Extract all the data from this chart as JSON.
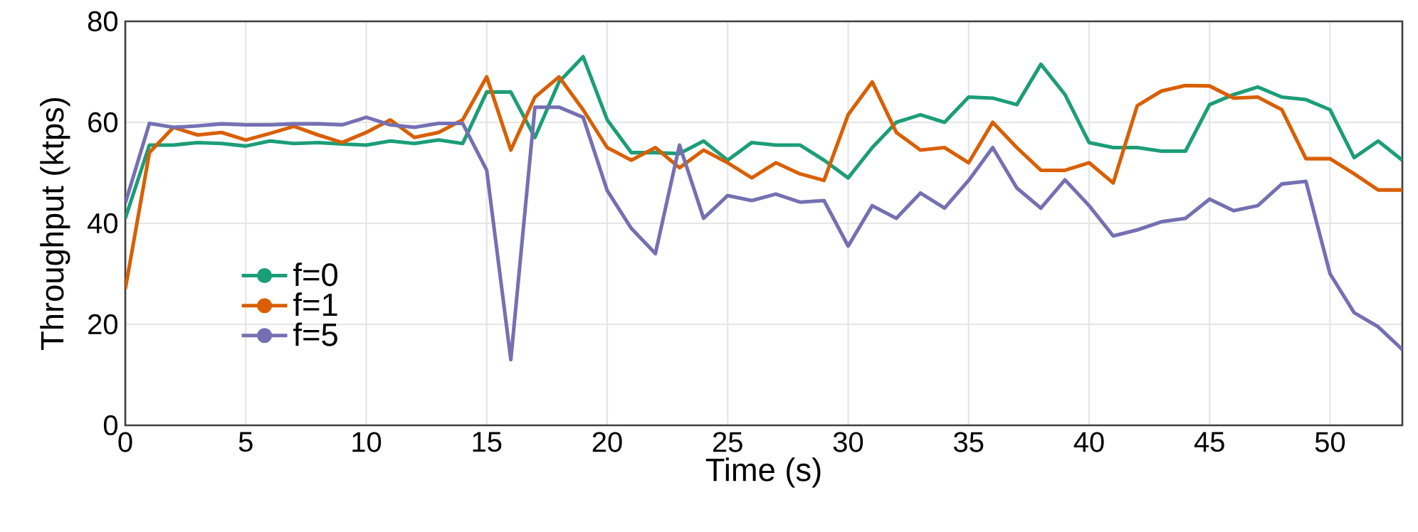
{
  "chart_data": {
    "type": "line",
    "xlabel": "Time (s)",
    "ylabel": "Throughput (ktps)",
    "x": [
      0,
      1,
      2,
      3,
      4,
      5,
      6,
      7,
      8,
      9,
      10,
      11,
      12,
      13,
      14,
      15,
      16,
      17,
      18,
      19,
      20,
      21,
      22,
      23,
      24,
      25,
      26,
      27,
      28,
      29,
      30,
      31,
      32,
      33,
      34,
      35,
      36,
      37,
      38,
      39,
      40,
      41,
      42,
      43,
      44,
      45,
      46,
      47,
      48,
      49,
      50,
      51,
      52,
      53
    ],
    "xlim": [
      0,
      53
    ],
    "xticks": [
      0,
      5,
      10,
      15,
      20,
      25,
      30,
      35,
      40,
      45,
      50
    ],
    "ylim": [
      0,
      80
    ],
    "yticks": [
      0,
      20,
      40,
      60,
      80
    ],
    "grid": true,
    "legend": "bottom left",
    "line_style": "solid",
    "series": [
      {
        "name": "f=0",
        "color": "#1b9e77",
        "values": [
          41,
          55.5,
          55.5,
          56,
          55.8,
          55.3,
          56.3,
          55.8,
          56,
          55.7,
          55.5,
          56.3,
          55.8,
          56.5,
          55.8,
          66,
          66,
          57,
          68,
          73,
          60.5,
          54,
          54,
          53.8,
          56.3,
          52.5,
          56,
          55.5,
          55.5,
          52.5,
          49,
          55,
          60,
          61.5,
          60,
          65,
          64.8,
          63.5,
          71.5,
          65.5,
          56,
          55,
          55,
          54.3,
          54.3,
          63.5,
          65.5,
          67,
          65,
          64.5,
          62.5,
          53,
          56.3,
          52.5
        ]
      },
      {
        "name": "f=1",
        "color": "#d95f02",
        "values": [
          27,
          54,
          59,
          57.5,
          58,
          56.5,
          57.8,
          59.2,
          57.5,
          56,
          58,
          60.5,
          57,
          58,
          60.5,
          69,
          54.5,
          65,
          69,
          62.5,
          55,
          52.5,
          55,
          51,
          54.5,
          52,
          49,
          52,
          49.8,
          48.5,
          61.5,
          68,
          58,
          54.5,
          55,
          52,
          60,
          55,
          50.5,
          50.5,
          52,
          48,
          63.3,
          66.2,
          67.3,
          67.2,
          64.8,
          65,
          62.5,
          52.8,
          52.8,
          49.8,
          46.6,
          46.6
        ]
      },
      {
        "name": "f=5",
        "color": "#7570b3",
        "values": [
          44,
          59.8,
          59,
          59.3,
          59.7,
          59.5,
          59.5,
          59.7,
          59.7,
          59.5,
          61,
          59.5,
          59,
          59.8,
          59.8,
          50.5,
          13,
          63,
          63,
          61,
          46.5,
          39,
          34,
          55.5,
          41,
          45.5,
          44.5,
          45.8,
          44.2,
          44.5,
          35.5,
          43.5,
          41,
          46,
          43,
          48.5,
          55,
          47,
          43,
          48.6,
          43.5,
          37.5,
          38.7,
          40.3,
          41,
          44.8,
          42.5,
          43.5,
          47.8,
          48.3,
          30,
          22.3,
          19.5,
          15
        ]
      }
    ]
  }
}
